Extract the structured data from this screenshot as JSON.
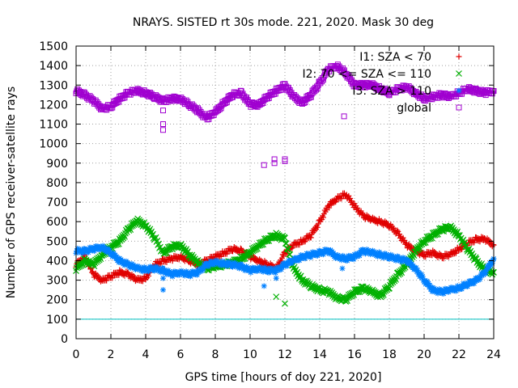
{
  "chart_data": {
    "type": "scatter",
    "title": "NRAYS. SISTED rt 30s mode. 221, 2020. Mask 30 deg",
    "xlabel": "GPS time [hours of doy 221, 2020]",
    "ylabel": "Number of GPS receiver-satellite rays",
    "xlim": [
      0,
      24
    ],
    "ylim": [
      0,
      1500
    ],
    "xticks": [
      "0",
      "2",
      "4",
      "6",
      "8",
      "10",
      "12",
      "14",
      "16",
      "18",
      "20",
      "22",
      "24"
    ],
    "yticks": [
      "0",
      "100",
      "200",
      "300",
      "400",
      "500",
      "600",
      "700",
      "800",
      "900",
      "1000",
      "1100",
      "1200",
      "1300",
      "1400",
      "1500"
    ],
    "grid": true,
    "legend_position": "top-right",
    "threshold_line": {
      "y": 100,
      "color": "#00c0c0"
    },
    "series": [
      {
        "name": "I1: SZA < 70",
        "marker": "+",
        "color": "#e00000",
        "points": [
          [
            0,
            380
          ],
          [
            0.5,
            420
          ],
          [
            1,
            330
          ],
          [
            1.5,
            300
          ],
          [
            2,
            320
          ],
          [
            2.5,
            340
          ],
          [
            3,
            330
          ],
          [
            3.5,
            300
          ],
          [
            4,
            310
          ],
          [
            4.5,
            380
          ],
          [
            5,
            400
          ],
          [
            5.5,
            410
          ],
          [
            6,
            420
          ],
          [
            6.5,
            400
          ],
          [
            7,
            380
          ],
          [
            7.5,
            400
          ],
          [
            8,
            420
          ],
          [
            8.5,
            440
          ],
          [
            9,
            460
          ],
          [
            9.5,
            450
          ],
          [
            10,
            420
          ],
          [
            10.5,
            400
          ],
          [
            11,
            380
          ],
          [
            11.5,
            360
          ],
          [
            12,
            440
          ],
          [
            12.5,
            480
          ],
          [
            13,
            500
          ],
          [
            13.5,
            530
          ],
          [
            14,
            600
          ],
          [
            14.5,
            680
          ],
          [
            15,
            720
          ],
          [
            15.5,
            740
          ],
          [
            16,
            680
          ],
          [
            16.5,
            630
          ],
          [
            17,
            610
          ],
          [
            17.5,
            600
          ],
          [
            18,
            580
          ],
          [
            18.5,
            540
          ],
          [
            19,
            480
          ],
          [
            19.5,
            450
          ],
          [
            20,
            430
          ],
          [
            20.5,
            440
          ],
          [
            21,
            420
          ],
          [
            21.5,
            430
          ],
          [
            22,
            460
          ],
          [
            22.5,
            490
          ],
          [
            23,
            510
          ],
          [
            23.5,
            510
          ],
          [
            24,
            480
          ]
        ]
      },
      {
        "name": "I2: 70 <= SZA <= 110",
        "marker": "x",
        "color": "#00b000",
        "points": [
          [
            0,
            360
          ],
          [
            0.5,
            400
          ],
          [
            1,
            380
          ],
          [
            1.5,
            430
          ],
          [
            2,
            470
          ],
          [
            2.5,
            500
          ],
          [
            3,
            560
          ],
          [
            3.5,
            605
          ],
          [
            4,
            580
          ],
          [
            4.5,
            520
          ],
          [
            5,
            440
          ],
          [
            5.5,
            470
          ],
          [
            6,
            480
          ],
          [
            6.5,
            430
          ],
          [
            7,
            390
          ],
          [
            7.5,
            360
          ],
          [
            8,
            370
          ],
          [
            8.5,
            380
          ],
          [
            9,
            390
          ],
          [
            9.5,
            410
          ],
          [
            10,
            440
          ],
          [
            10.5,
            480
          ],
          [
            11,
            510
          ],
          [
            11.5,
            530
          ],
          [
            12,
            510
          ],
          [
            12.5,
            360
          ],
          [
            13,
            300
          ],
          [
            13.5,
            270
          ],
          [
            14,
            250
          ],
          [
            14.5,
            240
          ],
          [
            15,
            210
          ],
          [
            15.5,
            200
          ],
          [
            16,
            240
          ],
          [
            16.5,
            260
          ],
          [
            17,
            240
          ],
          [
            17.5,
            220
          ],
          [
            18,
            270
          ],
          [
            18.5,
            330
          ],
          [
            19,
            380
          ],
          [
            19.5,
            450
          ],
          [
            20,
            500
          ],
          [
            20.5,
            530
          ],
          [
            21,
            560
          ],
          [
            21.5,
            570
          ],
          [
            22,
            530
          ],
          [
            22.5,
            460
          ],
          [
            23,
            400
          ],
          [
            23.5,
            350
          ],
          [
            24,
            340
          ]
        ]
      },
      {
        "name": "I3: SZA > 110",
        "marker": "*",
        "color": "#0080ff",
        "points": [
          [
            0,
            450
          ],
          [
            0.5,
            450
          ],
          [
            1,
            460
          ],
          [
            1.5,
            470
          ],
          [
            2,
            440
          ],
          [
            2.5,
            400
          ],
          [
            3,
            380
          ],
          [
            3.5,
            360
          ],
          [
            4,
            355
          ],
          [
            4.5,
            360
          ],
          [
            5,
            350
          ],
          [
            5.5,
            330
          ],
          [
            6,
            340
          ],
          [
            6.5,
            330
          ],
          [
            7,
            340
          ],
          [
            7.5,
            380
          ],
          [
            8,
            390
          ],
          [
            8.5,
            385
          ],
          [
            9,
            380
          ],
          [
            9.5,
            370
          ],
          [
            10,
            350
          ],
          [
            10.5,
            360
          ],
          [
            11,
            350
          ],
          [
            11.5,
            350
          ],
          [
            12,
            380
          ],
          [
            12.5,
            400
          ],
          [
            13,
            420
          ],
          [
            13.5,
            430
          ],
          [
            14,
            440
          ],
          [
            14.5,
            450
          ],
          [
            15,
            420
          ],
          [
            15.5,
            410
          ],
          [
            16,
            420
          ],
          [
            16.5,
            450
          ],
          [
            17,
            440
          ],
          [
            17.5,
            430
          ],
          [
            18,
            420
          ],
          [
            18.5,
            410
          ],
          [
            19,
            400
          ],
          [
            19.5,
            360
          ],
          [
            20,
            300
          ],
          [
            20.5,
            250
          ],
          [
            21,
            240
          ],
          [
            21.5,
            250
          ],
          [
            22,
            260
          ],
          [
            22.5,
            280
          ],
          [
            23,
            300
          ],
          [
            23.5,
            340
          ],
          [
            24,
            410
          ]
        ]
      },
      {
        "name": "global",
        "marker": "square",
        "color": "#a000d0",
        "points": [
          [
            0,
            1270
          ],
          [
            0.5,
            1250
          ],
          [
            1,
            1220
          ],
          [
            1.5,
            1180
          ],
          [
            2,
            1190
          ],
          [
            2.5,
            1230
          ],
          [
            3,
            1260
          ],
          [
            3.5,
            1270
          ],
          [
            4,
            1260
          ],
          [
            4.5,
            1240
          ],
          [
            5,
            1220
          ],
          [
            5.5,
            1230
          ],
          [
            6,
            1230
          ],
          [
            6.5,
            1200
          ],
          [
            7,
            1170
          ],
          [
            7.5,
            1130
          ],
          [
            8,
            1160
          ],
          [
            8.5,
            1210
          ],
          [
            9,
            1250
          ],
          [
            9.5,
            1260
          ],
          [
            10,
            1200
          ],
          [
            10.5,
            1200
          ],
          [
            11,
            1240
          ],
          [
            11.5,
            1270
          ],
          [
            12,
            1300
          ],
          [
            12.5,
            1240
          ],
          [
            13,
            1210
          ],
          [
            13.5,
            1250
          ],
          [
            14,
            1310
          ],
          [
            14.5,
            1380
          ],
          [
            15,
            1400
          ],
          [
            15.5,
            1360
          ],
          [
            16,
            1300
          ],
          [
            16.5,
            1300
          ],
          [
            17,
            1300
          ],
          [
            17.5,
            1280
          ],
          [
            18,
            1260
          ],
          [
            18.5,
            1280
          ],
          [
            19,
            1290
          ],
          [
            19.5,
            1260
          ],
          [
            20,
            1230
          ],
          [
            20.5,
            1240
          ],
          [
            21,
            1250
          ],
          [
            21.5,
            1240
          ],
          [
            22,
            1260
          ],
          [
            22.5,
            1280
          ],
          [
            23,
            1270
          ],
          [
            23.5,
            1260
          ],
          [
            24,
            1270
          ]
        ]
      }
    ],
    "outliers": [
      {
        "series": "global",
        "points": [
          [
            5,
            1100
          ],
          [
            5,
            1070
          ],
          [
            5,
            1170
          ],
          [
            10.8,
            890
          ],
          [
            11.4,
            900
          ],
          [
            11.4,
            920
          ],
          [
            12,
            910
          ],
          [
            12,
            920
          ],
          [
            15.4,
            1140
          ]
        ]
      },
      {
        "series": "I2: 70 <= SZA <= 110",
        "points": [
          [
            11.5,
            215
          ],
          [
            12,
            180
          ]
        ]
      },
      {
        "series": "I3: SZA > 110",
        "points": [
          [
            5,
            250
          ],
          [
            5,
            310
          ],
          [
            10.8,
            270
          ],
          [
            11.5,
            310
          ],
          [
            15.3,
            360
          ]
        ]
      }
    ]
  }
}
